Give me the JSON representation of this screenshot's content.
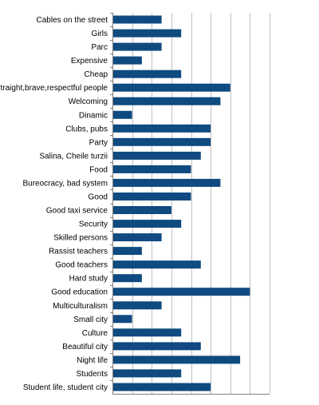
{
  "chart_data": {
    "type": "bar",
    "orientation": "horizontal",
    "categories": [
      "Cables on the street",
      "Girls",
      "Parc",
      "Expensive",
      "Cheap",
      "traight,brave,respectful people",
      "Welcoming",
      "Dinamic",
      "Clubs, pubs",
      "Party",
      "Salina, Cheile turzii",
      "Food",
      "Bureocracy, bad system",
      "Good",
      "Good taxi service",
      "Security",
      "Skilled persons",
      "Rassist teachers",
      "Good teachers",
      "Hard study",
      "Good education",
      "Multiculturalism",
      "Small city",
      "Culture",
      "Beautiful city",
      "Night life",
      "Students",
      "Student life, student city"
    ],
    "values": [
      5,
      7,
      5,
      3,
      7,
      12,
      11,
      2,
      10,
      10,
      9,
      8,
      11,
      8,
      6,
      7,
      5,
      3,
      9,
      3,
      14,
      5,
      2,
      7,
      9,
      13,
      7,
      10
    ],
    "xlim": [
      0,
      16
    ],
    "grid": true,
    "bar_color": "#0f4a80",
    "grid_color": "#c0c0c0",
    "axis_color": "#808080"
  }
}
